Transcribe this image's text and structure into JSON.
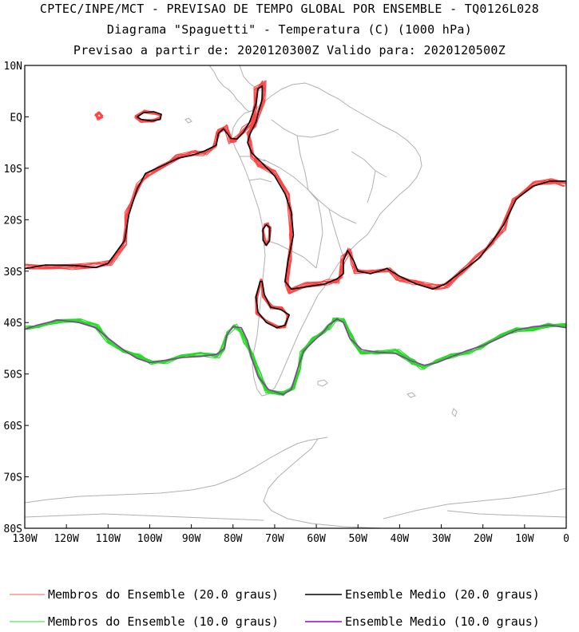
{
  "title": {
    "line1": "CPTEC/INPE/MCT - PREVISAO DE TEMPO GLOBAL POR ENSEMBLE - TQ0126L028",
    "line2": "Diagrama \"Spaguetti\" - Temperatura (C) (1000 hPa)",
    "line3": "Previsao a partir de: 2020120300Z  Valido para: 2020120500Z"
  },
  "axes": {
    "lat_ticks": [
      "10N",
      "EQ",
      "10S",
      "20S",
      "30S",
      "40S",
      "50S",
      "60S",
      "70S",
      "80S"
    ],
    "lon_ticks": [
      "130W",
      "120W",
      "110W",
      "100W",
      "90W",
      "80W",
      "70W",
      "60W",
      "50W",
      "40W",
      "30W",
      "20W",
      "10W",
      "0"
    ],
    "lat_range": [
      10,
      -80
    ],
    "lon_range": [
      -130,
      0
    ]
  },
  "legend": [
    {
      "label": "Membros do Ensemble (20.0 graus)",
      "color": "#ff5a5a"
    },
    {
      "label": "Ensemble Medio (20.0 graus)",
      "color": "#000000"
    },
    {
      "label": "Membros do Ensemble (10.0 graus)",
      "color": "#33dd33"
    },
    {
      "label": "Ensemble Medio (10.0 graus)",
      "color": "#a000c8"
    }
  ],
  "colors": {
    "coast": "#b0b0b0",
    "member20": "#ff4444",
    "mean20": "#000000",
    "member10": "#22dd22",
    "mean10": "#8a3c9e"
  },
  "isotherm_20": [
    [
      -130,
      -29.5
    ],
    [
      -125,
      -28.8
    ],
    [
      -118,
      -28.9
    ],
    [
      -113,
      -29.3
    ],
    [
      -110,
      -28.5
    ],
    [
      -106,
      -24
    ],
    [
      -105,
      -19
    ],
    [
      -103,
      -14
    ],
    [
      -101,
      -11
    ],
    [
      -97,
      -9.5
    ],
    [
      -93,
      -8
    ],
    [
      -90,
      -7.5
    ],
    [
      -87,
      -6.7
    ],
    [
      -84,
      -5.5
    ],
    [
      -83.5,
      -3.2
    ],
    [
      -82.3,
      -2.3
    ],
    [
      -80.5,
      -4.2
    ],
    [
      -79,
      -4.3
    ],
    [
      -77.5,
      -3
    ],
    [
      -76,
      -1
    ],
    [
      -74.5,
      2.5
    ],
    [
      -74,
      5.5
    ],
    [
      -73,
      6
    ],
    [
      -73,
      3.5
    ],
    [
      -74.5,
      -1
    ],
    [
      -76,
      -3.5
    ],
    [
      -76.5,
      -5
    ],
    [
      -75.5,
      -7
    ],
    [
      -73,
      -9
    ],
    [
      -70,
      -11.5
    ],
    [
      -67.5,
      -15
    ],
    [
      -66,
      -18.5
    ],
    [
      -65.5,
      -23
    ],
    [
      -66.8,
      -28
    ],
    [
      -67.5,
      -32
    ],
    [
      -66,
      -33.5
    ],
    [
      -62,
      -33
    ],
    [
      -58,
      -32.5
    ],
    [
      -55,
      -31.5
    ],
    [
      -53.5,
      -30.5
    ],
    [
      -53.5,
      -28
    ],
    [
      -52.5,
      -26
    ],
    [
      -51,
      -28
    ],
    [
      -50,
      -30
    ],
    [
      -47,
      -30.5
    ],
    [
      -43,
      -29.5
    ],
    [
      -40,
      -31
    ],
    [
      -36,
      -32.5
    ],
    [
      -32,
      -33.5
    ],
    [
      -29,
      -32.5
    ],
    [
      -25,
      -30
    ],
    [
      -21,
      -27.5
    ],
    [
      -18,
      -24.5
    ],
    [
      -15,
      -21
    ],
    [
      -12,
      -16
    ],
    [
      -8,
      -13.5
    ],
    [
      -4,
      -12.5
    ],
    [
      0,
      -12.5
    ]
  ],
  "isotherm_20_loop_andes": [
    [
      -72,
      -21
    ],
    [
      -71.2,
      -21.5
    ],
    [
      -71.2,
      -24
    ],
    [
      -72,
      -25
    ],
    [
      -72.8,
      -24
    ],
    [
      -72.8,
      -21.8
    ],
    [
      -72,
      -21
    ]
  ],
  "isotherm_20_loop_patagonia": [
    [
      -73.5,
      -32
    ],
    [
      -74.5,
      -35
    ],
    [
      -74,
      -38
    ],
    [
      -72,
      -40
    ],
    [
      -69.5,
      -41
    ],
    [
      -67.5,
      -40.5
    ],
    [
      -66.5,
      -38.5
    ],
    [
      -68.5,
      -37.5
    ],
    [
      -71,
      -37
    ],
    [
      -72.5,
      -34.5
    ],
    [
      -73,
      -32
    ],
    [
      -73.5,
      -32
    ]
  ],
  "isotherm_20_island_a": [
    [
      -101.5,
      0.8
    ],
    [
      -99,
      1
    ],
    [
      -97.2,
      0.5
    ],
    [
      -97.5,
      -0.5
    ],
    [
      -99.5,
      -0.8
    ],
    [
      -102,
      -0.5
    ],
    [
      -103,
      0
    ],
    [
      -101.5,
      0.8
    ]
  ],
  "isotherm_20_island_b": [
    [
      -112.5,
      0.6
    ],
    [
      -111.5,
      0.3
    ],
    [
      -112,
      -0.2
    ],
    [
      -113,
      0
    ],
    [
      -112.5,
      0.6
    ]
  ],
  "isotherm_10": [
    [
      -130,
      -41.3
    ],
    [
      -127,
      -40.5
    ],
    [
      -122,
      -39.5
    ],
    [
      -117,
      -40
    ],
    [
      -113,
      -41
    ],
    [
      -110,
      -43
    ],
    [
      -106,
      -45.5
    ],
    [
      -103,
      -47
    ],
    [
      -100,
      -47.8
    ],
    [
      -96,
      -47.3
    ],
    [
      -92,
      -46.8
    ],
    [
      -88,
      -46.6
    ],
    [
      -84,
      -46.2
    ],
    [
      -82,
      -45
    ],
    [
      -81.5,
      -42.5
    ],
    [
      -80,
      -40.8
    ],
    [
      -78,
      -41
    ],
    [
      -76.5,
      -43.5
    ],
    [
      -75.5,
      -47
    ],
    [
      -74,
      -50.5
    ],
    [
      -71.5,
      -53
    ],
    [
      -68,
      -54
    ],
    [
      -66,
      -53
    ],
    [
      -64.5,
      -49
    ],
    [
      -63,
      -45.5
    ],
    [
      -60.5,
      -43.5
    ],
    [
      -58.5,
      -42
    ],
    [
      -57,
      -40.5
    ],
    [
      -55,
      -39.3
    ],
    [
      -53.5,
      -40
    ],
    [
      -52,
      -43
    ],
    [
      -49,
      -45.3
    ],
    [
      -45,
      -45.8
    ],
    [
      -41,
      -46
    ],
    [
      -37,
      -47.5
    ],
    [
      -34,
      -48.3
    ],
    [
      -31,
      -47.8
    ],
    [
      -28,
      -46.8
    ],
    [
      -24,
      -45.5
    ],
    [
      -20,
      -44.5
    ],
    [
      -16,
      -43
    ],
    [
      -12,
      -41.5
    ],
    [
      -8,
      -40.8
    ],
    [
      -4,
      -40.5
    ],
    [
      0,
      -41
    ]
  ]
}
